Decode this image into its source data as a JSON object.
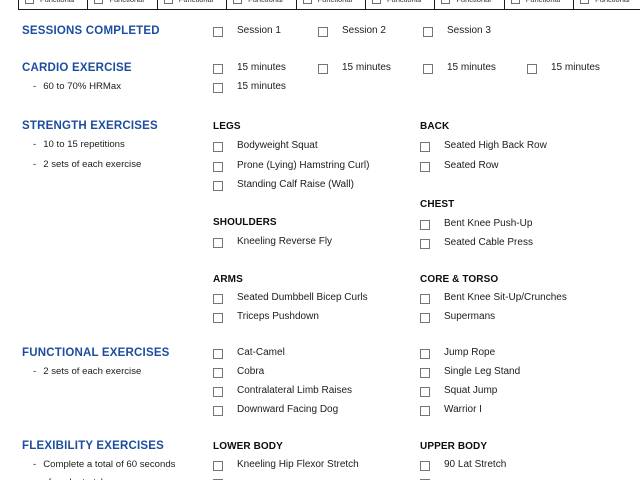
{
  "colors": {
    "heading_blue": "#1d4d9f"
  },
  "top_row": {
    "cell_label": "Functional",
    "cell_count": 9
  },
  "sections": {
    "sessions": {
      "heading": "SESSIONS COMPLETED",
      "items": [
        "Session 1",
        "Session 2",
        "Session 3"
      ]
    },
    "cardio": {
      "heading": "CARDIO EXERCISE",
      "bullets": [
        "60 to 70% HRMax"
      ],
      "row1": [
        "15 minutes",
        "15 minutes",
        "15 minutes",
        "15 minutes"
      ],
      "row2": [
        "15 minutes"
      ]
    },
    "strength": {
      "heading": "STRENGTH EXERCISES",
      "bullets": [
        "10 to 15 repetitions",
        "2 sets of each exercise"
      ],
      "groups": [
        {
          "id": "legs",
          "header": "LEGS",
          "items": [
            "Bodyweight Squat",
            "Prone (Lying) Hamstring Curl)",
            "Standing Calf Raise (Wall)"
          ]
        },
        {
          "id": "back",
          "header": "BACK",
          "items": [
            "Seated High Back Row",
            "Seated Row"
          ]
        },
        {
          "id": "shoulders",
          "header": "SHOULDERS",
          "items": [
            "Kneeling Reverse Fly"
          ]
        },
        {
          "id": "chest",
          "header": "CHEST",
          "items": [
            "Bent Knee Push-Up",
            "Seated Cable Press"
          ]
        },
        {
          "id": "arms",
          "header": "ARMS",
          "items": [
            "Seated Dumbbell Bicep Curls",
            "Triceps Pushdown"
          ]
        },
        {
          "id": "core-torso",
          "header": "CORE & TORSO",
          "items": [
            "Bent Knee Sit-Up/Crunches",
            "Supermans"
          ]
        }
      ]
    },
    "functional": {
      "heading": "FUNCTIONAL EXERCISES",
      "bullets": [
        "2 sets of each exercise"
      ],
      "groups": [
        {
          "id": "functional-left",
          "header": "",
          "items": [
            "Cat-Camel",
            "Cobra",
            "Contralateral Limb Raises",
            "Downward Facing Dog"
          ]
        },
        {
          "id": "functional-right",
          "header": "",
          "items": [
            "Jump Rope",
            "Single Leg Stand",
            "Squat Jump",
            "Warrior I"
          ]
        }
      ]
    },
    "flexibility": {
      "heading": "FLEXIBILITY EXERCISES",
      "bullets": [
        "Complete a total of 60 seconds",
        "of each stretch"
      ],
      "groups": [
        {
          "id": "lower-body",
          "header": "LOWER BODY",
          "items": [
            "Kneeling Hip Flexor Stretch",
            ""
          ]
        },
        {
          "id": "upper-body",
          "header": "UPPER BODY",
          "items": [
            "90 Lat Stretch",
            ""
          ]
        }
      ]
    }
  }
}
